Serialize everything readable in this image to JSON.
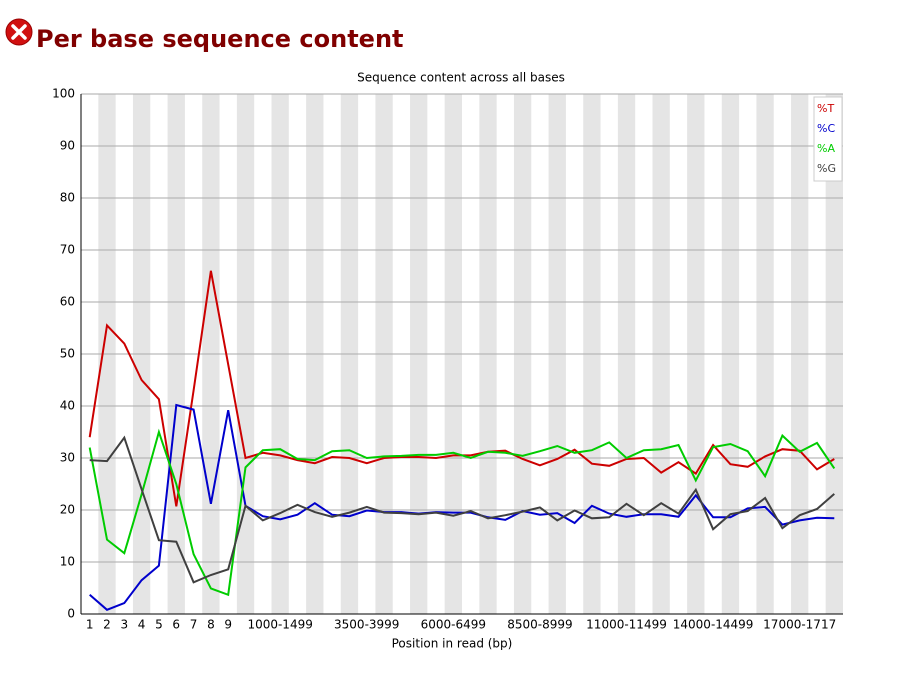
{
  "header": {
    "title": "Per base sequence content"
  },
  "chart_data": {
    "type": "line",
    "title": "Sequence content across all bases",
    "x_label": "Position in read (bp)",
    "categories": [
      "1",
      "2",
      "3",
      "4",
      "5",
      "6",
      "7",
      "8",
      "9",
      null,
      null,
      "1000-1499",
      null,
      null,
      null,
      null,
      "3500-3999",
      null,
      null,
      null,
      null,
      "6000-6499",
      null,
      null,
      null,
      null,
      "8500-8999",
      null,
      null,
      null,
      null,
      "11000-11499",
      null,
      null,
      null,
      null,
      "14000-14499",
      null,
      null,
      null,
      null,
      "17000-1717",
      null,
      null
    ],
    "series": [
      {
        "name": "%T",
        "color": "#cc0000",
        "values": [
          34,
          55.5,
          52,
          45,
          41.3,
          20.7,
          43,
          66,
          48,
          30,
          31,
          30.5,
          29.6,
          29,
          30.2,
          30,
          29,
          30,
          30.2,
          30.2,
          30,
          30.5,
          30.5,
          31.2,
          31.4,
          29.8,
          28.6,
          29.8,
          31.6,
          28.9,
          28.5,
          29.8,
          30,
          27.2,
          29.2,
          27,
          32.5,
          28.8,
          28.3,
          30.3,
          31.7,
          31.4,
          27.8,
          29.8
        ]
      },
      {
        "name": "%C",
        "color": "#0000cc",
        "values": [
          3.7,
          0.8,
          2.1,
          6.5,
          9.3,
          40.2,
          39.3,
          21.2,
          39.2,
          20.8,
          18.8,
          18.2,
          19.1,
          21.3,
          19.1,
          18.8,
          19.9,
          19.6,
          19.6,
          19.3,
          19.6,
          19.5,
          19.5,
          18.6,
          18.1,
          19.8,
          19.1,
          19.4,
          17.5,
          20.8,
          19.3,
          18.7,
          19.2,
          19.2,
          18.7,
          22.8,
          18.6,
          18.6,
          20.3,
          20.6,
          17.2,
          18,
          18.5,
          18.4
        ]
      },
      {
        "name": "%A",
        "color": "#00cc00",
        "values": [
          32,
          14.3,
          11.7,
          23,
          35,
          25,
          11.5,
          4.9,
          3.7,
          28.2,
          31.5,
          31.7,
          29.8,
          29.6,
          31.3,
          31.5,
          30,
          30.3,
          30.4,
          30.6,
          30.6,
          31,
          30,
          31.2,
          31,
          30.4,
          31.3,
          32.3,
          31,
          31.5,
          33,
          30,
          31.5,
          31.7,
          32.5,
          25.7,
          32.1,
          32.7,
          31.3,
          26.5,
          34.3,
          31.2,
          32.9,
          28
        ]
      },
      {
        "name": "%G",
        "color": "#404040",
        "values": [
          29.6,
          29.4,
          33.9,
          24,
          14.2,
          13.9,
          6.1,
          7.5,
          8.6,
          20.8,
          18,
          19.4,
          21,
          19.6,
          18.7,
          19.5,
          20.6,
          19.5,
          19.4,
          19.2,
          19.5,
          18.9,
          19.8,
          18.4,
          19,
          19.7,
          20.5,
          18,
          19.9,
          18.4,
          18.6,
          21.2,
          19,
          21.3,
          19.3,
          23.9,
          16.3,
          19.2,
          19.8,
          22.3,
          16.5,
          19,
          20.2,
          23.1
        ]
      }
    ],
    "ylim": [
      0,
      100
    ],
    "yticks": [
      0,
      10,
      20,
      30,
      40,
      50,
      60,
      70,
      80,
      90,
      100
    ],
    "grid": true,
    "legend": "top-right"
  }
}
